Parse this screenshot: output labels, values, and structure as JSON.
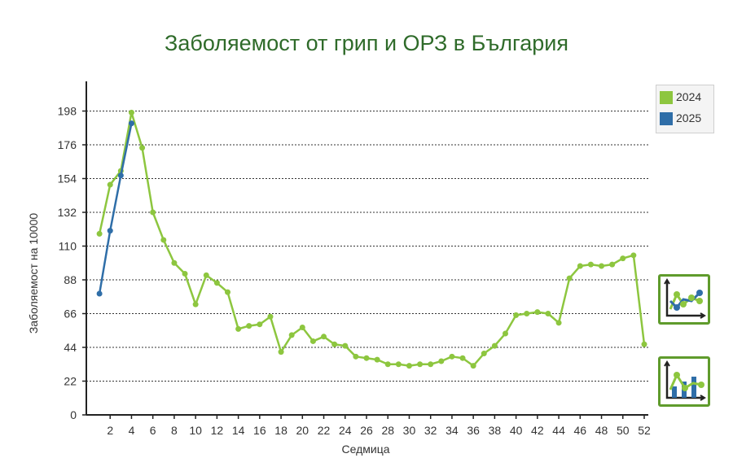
{
  "chart_data": {
    "type": "line",
    "title": "Заболяемост от грип и ОРЗ в България",
    "xlabel": "Седмица",
    "ylabel": "Заболяемост на 10000",
    "xlim": [
      0,
      52
    ],
    "ylim": [
      0,
      220
    ],
    "y_ticks": [
      0,
      22,
      44,
      66,
      88,
      110,
      132,
      154,
      176,
      198
    ],
    "x_ticks": [
      2,
      4,
      6,
      8,
      10,
      12,
      14,
      16,
      18,
      20,
      22,
      24,
      26,
      28,
      30,
      32,
      34,
      36,
      38,
      40,
      42,
      44,
      46,
      48,
      50,
      52
    ],
    "grid": true,
    "legend_position": "top-right",
    "series": [
      {
        "name": "2024",
        "color": "#8dc63f",
        "x": [
          1,
          2,
          3,
          4,
          5,
          6,
          7,
          8,
          9,
          10,
          11,
          12,
          13,
          14,
          15,
          16,
          17,
          18,
          19,
          20,
          21,
          22,
          23,
          24,
          25,
          26,
          27,
          28,
          29,
          30,
          31,
          32,
          33,
          34,
          35,
          36,
          37,
          38,
          39,
          40,
          41,
          42,
          43,
          44,
          45,
          46,
          47,
          48,
          49,
          50,
          51,
          52
        ],
        "values": [
          118,
          150,
          159,
          197,
          174,
          132,
          114,
          99,
          92,
          72,
          91,
          86,
          80,
          56,
          58,
          59,
          64,
          41,
          52,
          57,
          48,
          51,
          46,
          45,
          38,
          37,
          36,
          33,
          33,
          32,
          33,
          33,
          35,
          38,
          37,
          32,
          40,
          45,
          53,
          65,
          66,
          67,
          66,
          60,
          89,
          97,
          98,
          97,
          98,
          102,
          104,
          46
        ]
      },
      {
        "name": "2025",
        "color": "#2f6ea8",
        "x": [
          1,
          2,
          3,
          4
        ],
        "values": [
          79,
          120,
          156,
          190
        ]
      }
    ]
  },
  "legend": {
    "items": [
      {
        "label": "2024",
        "color": "#8dc63f"
      },
      {
        "label": "2025",
        "color": "#2f6ea8"
      }
    ]
  },
  "side_buttons": {
    "line_chart_icon": "line-chart-icon",
    "bar_chart_icon": "bar-chart-icon"
  }
}
